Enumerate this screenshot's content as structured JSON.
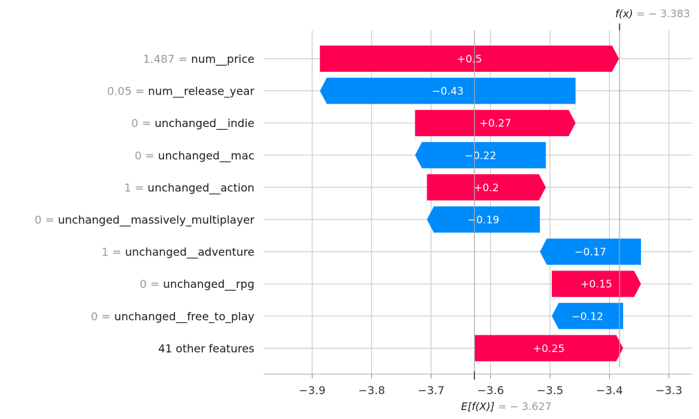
{
  "chart_data": {
    "type": "bar",
    "subtype": "shap-waterfall",
    "base_value": -3.627,
    "final_value": -3.383,
    "fx_label": "f(x)",
    "fx_value_text": "= − 3.383",
    "ex_label": "E[f(X)]",
    "ex_value_text": "= − 3.627",
    "xlim": [
      -3.972,
      -3.25
    ],
    "xticks": [
      -3.9,
      -3.8,
      -3.7,
      -3.6,
      -3.5,
      -3.4,
      -3.3
    ],
    "xtick_labels": [
      "−3.9",
      "−3.8",
      "−3.7",
      "−3.6",
      "−3.5",
      "−3.4",
      "−3.3"
    ],
    "features": [
      {
        "value": "1.487",
        "name": "num__price",
        "contribution": 0.503,
        "label": "+0.5"
      },
      {
        "value": "0.05",
        "name": "num__release_year",
        "contribution": -0.43,
        "label": "−0.43"
      },
      {
        "value": "0",
        "name": "unchanged__indie",
        "contribution": 0.27,
        "label": "+0.27"
      },
      {
        "value": "0",
        "name": "unchanged__mac",
        "contribution": -0.22,
        "label": "−0.22"
      },
      {
        "value": "1",
        "name": "unchanged__action",
        "contribution": 0.2,
        "label": "+0.2"
      },
      {
        "value": "0",
        "name": "unchanged__massively_multiplayer",
        "contribution": -0.19,
        "label": "−0.19"
      },
      {
        "value": "1",
        "name": "unchanged__adventure",
        "contribution": -0.17,
        "label": "−0.17"
      },
      {
        "value": "0",
        "name": "unchanged__rpg",
        "contribution": 0.15,
        "label": "+0.15"
      },
      {
        "value": "0",
        "name": "unchanged__free_to_play",
        "contribution": -0.12,
        "label": "−0.12"
      },
      {
        "value": "",
        "name": "41 other features",
        "contribution": 0.25,
        "label": "+0.25"
      }
    ],
    "colors": {
      "positive": "#ff0051",
      "negative": "#008bfb",
      "grid": "#cccccc",
      "axis": "#bbbbbb"
    }
  }
}
